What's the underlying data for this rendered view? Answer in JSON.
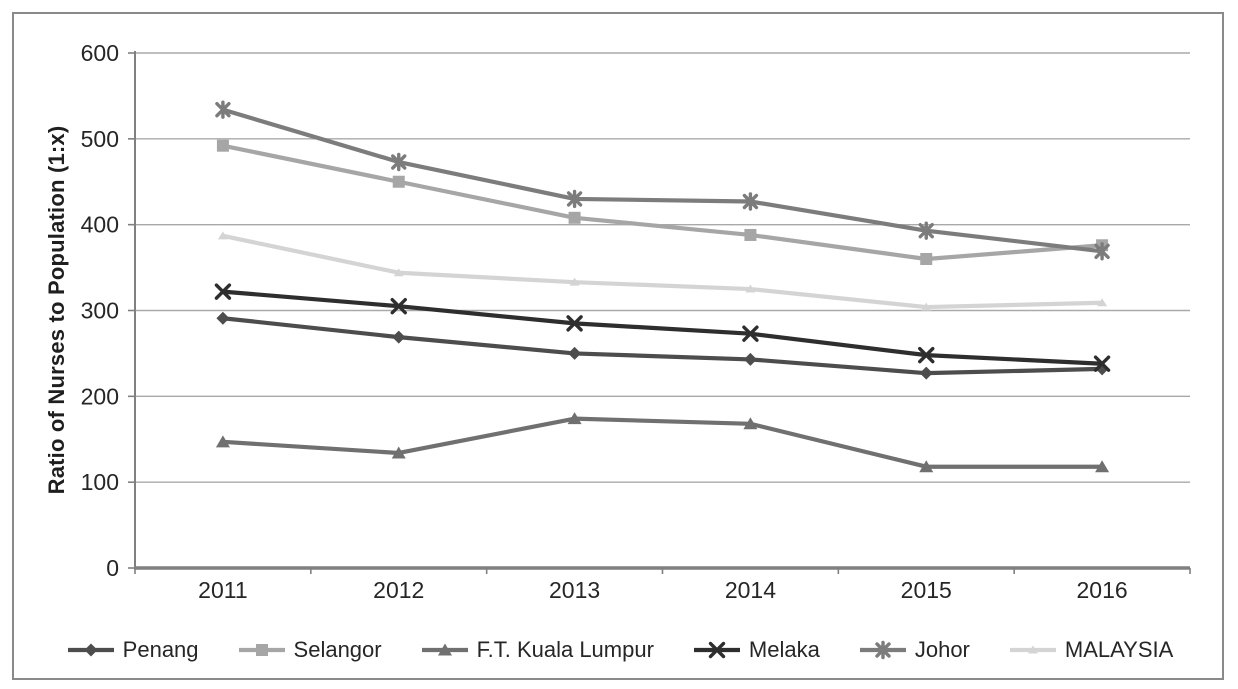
{
  "chart_data": {
    "type": "line",
    "title": "",
    "xlabel": "",
    "ylabel": "Ratio of Nurses to Population (1:x)",
    "categories": [
      "2011",
      "2012",
      "2013",
      "2014",
      "2015",
      "2016"
    ],
    "yticks": [
      0,
      100,
      200,
      300,
      400,
      500,
      600
    ],
    "ylim": [
      0,
      600
    ],
    "grid": "horizontal",
    "legend_position": "bottom",
    "series": [
      {
        "name": "Penang",
        "marker": "diamond",
        "color": "#4d4d4d",
        "values": [
          291,
          269,
          250,
          243,
          227,
          232
        ]
      },
      {
        "name": "Selangor",
        "marker": "square",
        "color": "#a6a6a6",
        "values": [
          492,
          450,
          408,
          388,
          360,
          376
        ]
      },
      {
        "name": "F.T. Kuala Lumpur",
        "marker": "triangle",
        "color": "#707070",
        "values": [
          147,
          134,
          174,
          168,
          118,
          118
        ]
      },
      {
        "name": "Melaka",
        "marker": "x",
        "color": "#2e2e2e",
        "values": [
          322,
          305,
          285,
          273,
          248,
          238
        ]
      },
      {
        "name": "Johor",
        "marker": "star",
        "color": "#7c7c7c",
        "values": [
          534,
          473,
          430,
          427,
          393,
          369
        ]
      },
      {
        "name": "MALAYSIA",
        "marker": "triangle-small",
        "color": "#d4d4d4",
        "values": [
          387,
          344,
          333,
          325,
          304,
          309
        ]
      }
    ],
    "colors": {
      "gridline": "#a9a9a9",
      "axis": "#808080",
      "text": "#262626",
      "frame": "#8a8a8a",
      "background": "#ffffff"
    }
  }
}
